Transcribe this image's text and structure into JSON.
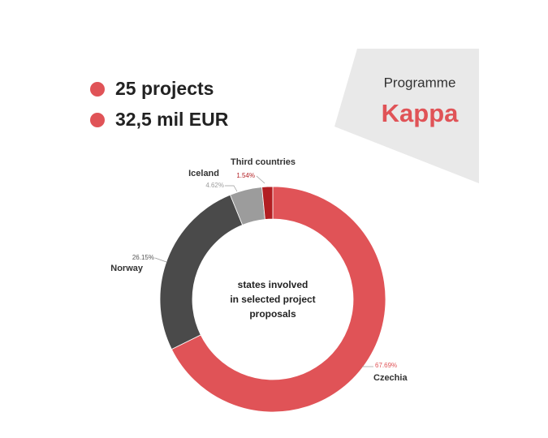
{
  "header": {
    "items": [
      "25 projects",
      "32,5 mil EUR"
    ],
    "programme": "Programme",
    "name": "Kappa"
  },
  "chart_data": {
    "type": "pie",
    "donut": true,
    "center_text": [
      "states involved",
      "in selected project",
      "proposals"
    ],
    "categories": [
      "Czechia",
      "Norway",
      "Iceland",
      "Third countries"
    ],
    "values": [
      67.69,
      26.15,
      4.62,
      1.54
    ],
    "value_labels": [
      "67.69%",
      "26.15%",
      "4.62%",
      "1.54%"
    ],
    "colors": [
      "#e05357",
      "#4a4a4a",
      "#9c9c9c",
      "#b21e22"
    ]
  }
}
